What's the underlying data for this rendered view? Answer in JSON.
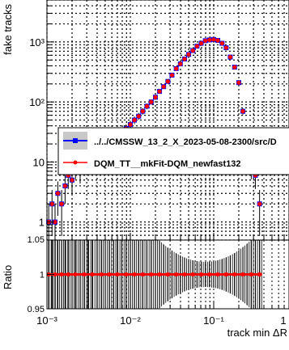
{
  "chart_data": [
    {
      "type": "scatter",
      "panel": "main",
      "xlabel": "track min ΔR",
      "ylabel": "fake tracks",
      "xscale": "log",
      "yscale": "log",
      "xlim": [
        0.001,
        0.8
      ],
      "ylim": [
        0.5,
        5000
      ],
      "x_tick_labels": [
        "10⁻³",
        "10⁻²",
        "10⁻¹",
        "1"
      ],
      "y_tick_labels": [
        "1",
        "10",
        "10²",
        "10³"
      ],
      "grid": true,
      "legend_position": "center-right",
      "series": [
        {
          "name": "../../CMSSW_13_2_X_2023-05-08-2300/src/D",
          "color": "#0000ff",
          "marker": "square",
          "x": [
            0.00105,
            0.00115,
            0.00125,
            0.00135,
            0.0015,
            0.00165,
            0.0018,
            0.002,
            0.0022,
            0.0025,
            0.0028,
            0.0031,
            0.0035,
            0.004,
            0.0045,
            0.005,
            0.0056,
            0.0063,
            0.007,
            0.0079,
            0.0089,
            0.01,
            0.0112,
            0.0126,
            0.0141,
            0.0158,
            0.0178,
            0.02,
            0.0224,
            0.0251,
            0.0282,
            0.0316,
            0.0355,
            0.0398,
            0.0447,
            0.0501,
            0.0562,
            0.0631,
            0.0708,
            0.0794,
            0.0891,
            0.1,
            0.112,
            0.126,
            0.141,
            0.158,
            0.178,
            0.2,
            0.224,
            0.251,
            0.282,
            0.316,
            0.355
          ],
          "y": [
            1,
            2,
            1,
            3,
            2,
            4,
            6,
            5,
            8,
            7,
            10,
            9,
            12,
            14,
            13,
            16,
            19,
            22,
            26,
            30,
            36,
            42,
            50,
            58,
            70,
            85,
            100,
            120,
            150,
            180,
            220,
            280,
            360,
            430,
            520,
            620,
            720,
            850,
            950,
            1050,
            1080,
            1100,
            1060,
            950,
            800,
            560,
            380,
            210,
            70,
            22,
            8,
            6,
            2
          ]
        },
        {
          "name": "DQM_TT__mkFit-DQM_newfast132",
          "color": "#ff0000",
          "marker": "circle",
          "x": [
            0.00105,
            0.00115,
            0.00125,
            0.00135,
            0.0015,
            0.00165,
            0.0018,
            0.002,
            0.0022,
            0.0025,
            0.0028,
            0.0031,
            0.0035,
            0.004,
            0.0045,
            0.005,
            0.0056,
            0.0063,
            0.007,
            0.0079,
            0.0089,
            0.01,
            0.0112,
            0.0126,
            0.0141,
            0.0158,
            0.0178,
            0.02,
            0.0224,
            0.0251,
            0.0282,
            0.0316,
            0.0355,
            0.0398,
            0.0447,
            0.0501,
            0.0562,
            0.0631,
            0.0708,
            0.0794,
            0.0891,
            0.1,
            0.112,
            0.126,
            0.141,
            0.158,
            0.178,
            0.2,
            0.224,
            0.251,
            0.282,
            0.316,
            0.355
          ],
          "y": [
            1,
            2,
            1,
            3,
            2,
            4,
            6,
            5,
            8,
            7,
            10,
            9,
            12,
            14,
            13,
            16,
            19,
            22,
            26,
            30,
            36,
            42,
            50,
            58,
            70,
            85,
            100,
            120,
            150,
            180,
            220,
            280,
            360,
            430,
            520,
            620,
            720,
            850,
            950,
            1050,
            1080,
            1100,
            1060,
            950,
            800,
            560,
            380,
            210,
            70,
            22,
            8,
            6,
            2
          ]
        }
      ]
    },
    {
      "type": "scatter",
      "panel": "ratio",
      "xlabel": "track min ΔR",
      "ylabel": "Ratio",
      "xscale": "log",
      "xlim": [
        0.001,
        0.8
      ],
      "ylim": [
        0.95,
        1.05
      ],
      "x_tick_labels": [
        "10⁻³",
        "10⁻²",
        "10⁻¹",
        "1"
      ],
      "y_tick_labels": [
        "0.95",
        "1",
        "1.05"
      ],
      "grid": true,
      "series": [
        {
          "color": "#ff0000",
          "x": [
            0.00105,
            0.00125,
            0.0015,
            0.0018,
            0.0022,
            0.0028,
            0.0035,
            0.0045,
            0.0056,
            0.007,
            0.0089,
            0.0112,
            0.0141,
            0.0178,
            0.0224,
            0.0282,
            0.0355,
            0.0447,
            0.0562,
            0.0708,
            0.0891,
            0.112,
            0.141,
            0.178,
            0.224,
            0.282,
            0.355
          ],
          "y": [
            1,
            1,
            1,
            1,
            1,
            1,
            1,
            1,
            1,
            1,
            1,
            1,
            1,
            1,
            1,
            1,
            1,
            1,
            1,
            1,
            1,
            1,
            1,
            1,
            1,
            1,
            1
          ]
        }
      ]
    }
  ]
}
